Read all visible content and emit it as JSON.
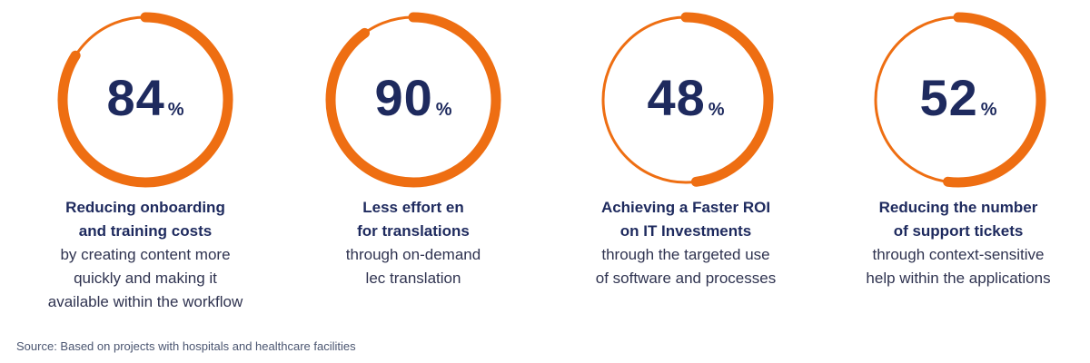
{
  "colors": {
    "accent": "#ee6e12",
    "heading": "#1e2a5e",
    "text": "#2f3350"
  },
  "chart_data": {
    "type": "donut-stats",
    "items": [
      {
        "value": 84,
        "unit": "%",
        "title_lines": [
          "Reducing onboarding",
          "and training costs"
        ],
        "desc_lines": [
          "by creating content more",
          "quickly and making it",
          "available within the workflow"
        ]
      },
      {
        "value": 90,
        "unit": "%",
        "title_lines": [
          "Less effort en",
          "for translations"
        ],
        "desc_lines": [
          "through on-demand",
          "lec translation"
        ]
      },
      {
        "value": 48,
        "unit": "%",
        "title_lines": [
          "Achieving a Faster ROI",
          "on IT Investments"
        ],
        "desc_lines": [
          "through the targeted use",
          "of software and processes"
        ]
      },
      {
        "value": 52,
        "unit": "%",
        "title_lines": [
          "Reducing the number",
          "of support tickets"
        ],
        "desc_lines": [
          "through context-sensitive",
          "help within the applications"
        ]
      }
    ]
  },
  "source": "Source: Based on projects with hospitals and healthcare facilities"
}
